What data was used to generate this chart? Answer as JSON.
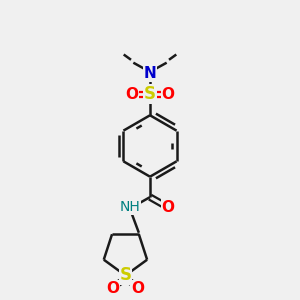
{
  "bg_color": "#f0f0f0",
  "bond_color": "#1a1a1a",
  "S_color": "#cccc00",
  "N_color": "#0000cc",
  "NH_color": "#008080",
  "O_color": "#ff0000",
  "C_color": "#1a1a1a",
  "line_width": 1.8,
  "font_size": 10,
  "fig_size": [
    3.0,
    3.0
  ],
  "dpi": 100,
  "xlim": [
    0,
    10
  ],
  "ylim": [
    0,
    10
  ]
}
